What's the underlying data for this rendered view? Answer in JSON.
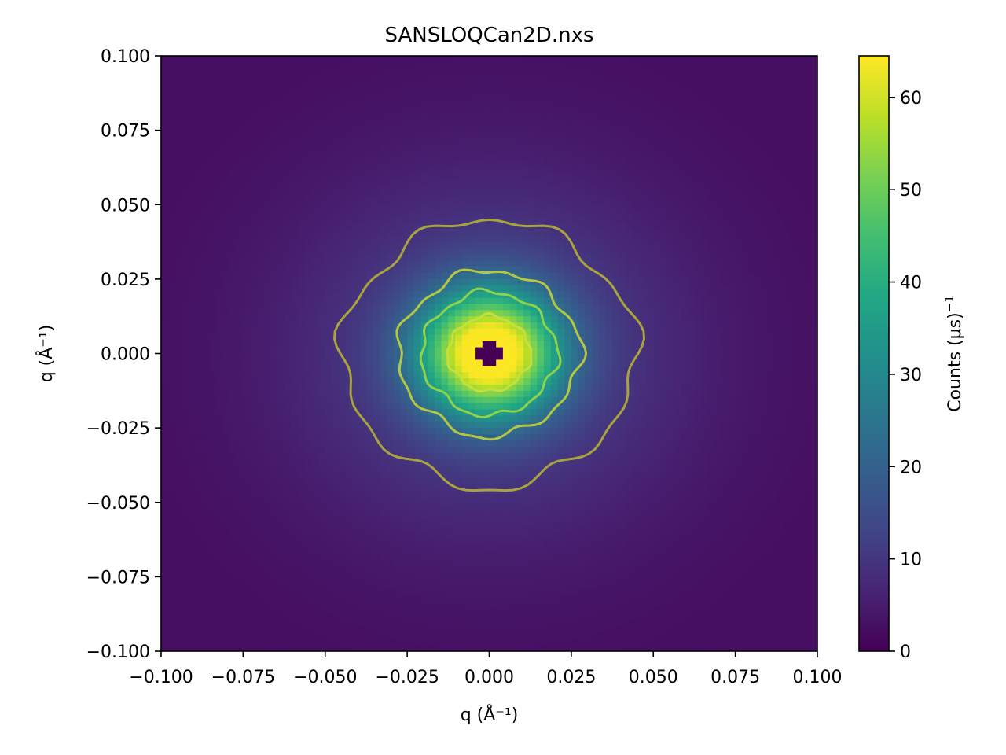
{
  "chart_data": {
    "type": "heatmap",
    "title": "SANSLOQCan2D.nxs",
    "xlabel": "q (Å⁻¹)",
    "ylabel": "q (Å⁻¹)",
    "xlim": [
      -0.1,
      0.1
    ],
    "ylim": [
      -0.1,
      0.1
    ],
    "x_ticks": [
      -0.1,
      -0.075,
      -0.05,
      -0.025,
      0.0,
      0.025,
      0.05,
      0.075,
      0.1
    ],
    "x_tick_labels": [
      "−0.100",
      "−0.075",
      "−0.050",
      "−0.025",
      "0.000",
      "0.025",
      "0.050",
      "0.075",
      "0.100"
    ],
    "y_ticks": [
      -0.1,
      -0.075,
      -0.05,
      -0.025,
      0.0,
      0.025,
      0.05,
      0.075,
      0.1
    ],
    "y_tick_labels": [
      "−0.100",
      "−0.075",
      "−0.050",
      "−0.025",
      "0.000",
      "0.025",
      "0.050",
      "0.075",
      "0.100"
    ],
    "colormap": "viridis",
    "colorbar": {
      "label": "Counts (μs)",
      "label_exponent": "−1",
      "range": [
        0,
        64.5
      ],
      "ticks": [
        0,
        10,
        20,
        30,
        40,
        50,
        60
      ],
      "tick_labels": [
        "0",
        "10",
        "20",
        "30",
        "40",
        "50",
        "60"
      ]
    },
    "intensity_model": {
      "peak": 60,
      "core_width_q": 0.0145,
      "halo_fraction": 0.2,
      "halo_width_q": 0.04,
      "background": 2.5,
      "beamstop_half_diagonal_q": 0.0052
    },
    "contours": [
      {
        "level": 15,
        "radius_q": 0.0445,
        "color": "#a8a33c"
      },
      {
        "level": 25,
        "radius_q": 0.0275,
        "color": "#b5c640"
      },
      {
        "level": 35,
        "radius_q": 0.0205,
        "color": "#8dd24a"
      },
      {
        "level": 45,
        "radius_q": 0.0125,
        "color": "#c5e03a"
      },
      {
        "level": 55,
        "radius_q": 0.0065,
        "color": "#f4ea22"
      }
    ]
  }
}
